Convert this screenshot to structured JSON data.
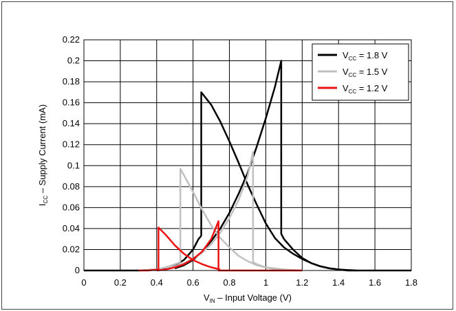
{
  "chart_data": {
    "type": "line",
    "xlabel": {
      "main": "V",
      "sub": "IN",
      "rest": " – Input Voltage (V)"
    },
    "ylabel": {
      "main": "I",
      "sub": "CC",
      "rest": " – Supply Current (mA)"
    },
    "xlim": [
      0,
      1.8
    ],
    "ylim": [
      0,
      0.22
    ],
    "xticks": [
      "0",
      "0.2",
      "0.4",
      "0.6",
      "0.8",
      "1",
      "1.2",
      "1.4",
      "1.6",
      "1.8"
    ],
    "yticks": [
      "0",
      "0.02",
      "0.04",
      "0.06",
      "0.08",
      "0.1",
      "0.12",
      "0.14",
      "0.16",
      "0.18",
      "0.2",
      "0.22"
    ],
    "grid": true,
    "legend_position": "top-right",
    "series": [
      {
        "name": "1.8 V",
        "legend": {
          "main": "V",
          "sub": "CC",
          "rest": " = 1.8 V"
        },
        "color": "#000000",
        "segments": [
          {
            "x": [
              0,
              0.2,
              0.3,
              0.4,
              0.45,
              0.5,
              0.55,
              0.6,
              0.63,
              0.645
            ],
            "y": [
              0,
              0,
              0,
              0.001,
              0.002,
              0.005,
              0.01,
              0.02,
              0.03,
              0.033
            ]
          },
          {
            "x": [
              0.645,
              0.645,
              0.7,
              0.75,
              0.8,
              0.85,
              0.9,
              0.95,
              1.0,
              1.05,
              1.1,
              1.15,
              1.2,
              1.25,
              1.3,
              1.35,
              1.4,
              1.5,
              1.6,
              1.8
            ],
            "y": [
              0.033,
              0.17,
              0.158,
              0.142,
              0.123,
              0.103,
              0.082,
              0.063,
              0.045,
              0.031,
              0.022,
              0.016,
              0.011,
              0.007,
              0.004,
              0.002,
              0.001,
              0,
              0,
              0
            ]
          },
          {
            "x": [
              0.5,
              0.55,
              0.6,
              0.65,
              0.7,
              0.75,
              0.8,
              0.85,
              0.9,
              0.95,
              1.0,
              1.05,
              1.085,
              1.085,
              1.1,
              1.15,
              1.2,
              1.25,
              1.3,
              1.35,
              1.4,
              1.45,
              1.5
            ],
            "y": [
              0.002,
              0.005,
              0.01,
              0.018,
              0.028,
              0.04,
              0.055,
              0.073,
              0.093,
              0.118,
              0.145,
              0.175,
              0.2,
              0.035,
              0.03,
              0.02,
              0.012,
              0.007,
              0.004,
              0.002,
              0.001,
              0,
              0
            ]
          }
        ]
      },
      {
        "name": "1.5 V",
        "legend": {
          "main": "V",
          "sub": "CC",
          "rest": " = 1.5 V"
        },
        "color": "#c0c0c0",
        "segments": [
          {
            "x": [
              0.3,
              0.4,
              0.45,
              0.5,
              0.53
            ],
            "y": [
              0,
              0.001,
              0.003,
              0.006,
              0.008
            ]
          },
          {
            "x": [
              0.53,
              0.53,
              0.55,
              0.6,
              0.65,
              0.7,
              0.75,
              0.8,
              0.85,
              0.9,
              0.95,
              1.0,
              1.1,
              1.2
            ],
            "y": [
              0.008,
              0.097,
              0.091,
              0.075,
              0.058,
              0.043,
              0.031,
              0.022,
              0.014,
              0.009,
              0.005,
              0.003,
              0.001,
              0
            ]
          },
          {
            "x": [
              0.45,
              0.5,
              0.55,
              0.6,
              0.65,
              0.7,
              0.75,
              0.8,
              0.85,
              0.9,
              0.93,
              0.93,
              0.95,
              1.0,
              1.05,
              1.1
            ],
            "y": [
              0.002,
              0.004,
              0.007,
              0.011,
              0.017,
              0.025,
              0.036,
              0.05,
              0.067,
              0.09,
              0.113,
              0.008,
              0.006,
              0.003,
              0.001,
              0
            ]
          }
        ]
      },
      {
        "name": "1.2 V",
        "legend": {
          "main": "V",
          "sub": "CC",
          "rest": " = 1.2 V"
        },
        "color": "#ee1111",
        "segments": [
          {
            "x": [
              0.3,
              0.35,
              0.38,
              0.41
            ],
            "y": [
              0,
              0,
              0.0005,
              0.001
            ]
          },
          {
            "x": [
              0.41,
              0.41,
              0.45,
              0.5,
              0.55,
              0.6,
              0.65,
              0.7,
              0.75
            ],
            "y": [
              0.001,
              0.041,
              0.034,
              0.024,
              0.016,
              0.01,
              0.006,
              0.003,
              0.001
            ]
          },
          {
            "x": [
              0.4,
              0.45,
              0.5,
              0.55,
              0.6,
              0.65,
              0.7,
              0.74,
              0.74,
              0.8,
              0.9,
              1.0,
              1.2
            ],
            "y": [
              0,
              0.001,
              0.003,
              0.006,
              0.011,
              0.018,
              0.03,
              0.047,
              0,
              0,
              0,
              0,
              0
            ]
          }
        ]
      }
    ]
  }
}
